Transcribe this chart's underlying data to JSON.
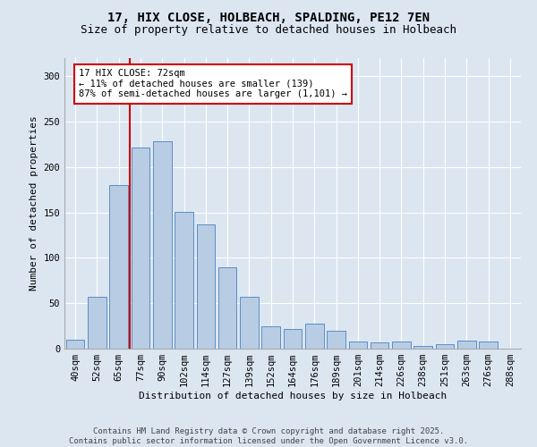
{
  "title_line1": "17, HIX CLOSE, HOLBEACH, SPALDING, PE12 7EN",
  "title_line2": "Size of property relative to detached houses in Holbeach",
  "xlabel": "Distribution of detached houses by size in Holbeach",
  "ylabel": "Number of detached properties",
  "categories": [
    "40sqm",
    "52sqm",
    "65sqm",
    "77sqm",
    "90sqm",
    "102sqm",
    "114sqm",
    "127sqm",
    "139sqm",
    "152sqm",
    "164sqm",
    "176sqm",
    "189sqm",
    "201sqm",
    "214sqm",
    "226sqm",
    "238sqm",
    "251sqm",
    "263sqm",
    "276sqm",
    "288sqm"
  ],
  "values": [
    10,
    57,
    180,
    222,
    228,
    151,
    137,
    90,
    57,
    25,
    22,
    28,
    20,
    8,
    7,
    8,
    3,
    5,
    9,
    8,
    0
  ],
  "bar_color": "#b8cce4",
  "bar_edgecolor": "#5a8ec5",
  "annotation_text": "17 HIX CLOSE: 72sqm\n← 11% of detached houses are smaller (139)\n87% of semi-detached houses are larger (1,101) →",
  "annotation_box_color": "#ffffff",
  "annotation_box_edgecolor": "#cc0000",
  "vline_color": "#cc0000",
  "vline_x": 2.5,
  "ylim": [
    0,
    320
  ],
  "yticks": [
    0,
    50,
    100,
    150,
    200,
    250,
    300
  ],
  "background_color": "#dce6f1",
  "footer_text": "Contains HM Land Registry data © Crown copyright and database right 2025.\nContains public sector information licensed under the Open Government Licence v3.0.",
  "title_fontsize": 10,
  "subtitle_fontsize": 9,
  "label_fontsize": 8,
  "tick_fontsize": 7.5,
  "annotation_fontsize": 7.5,
  "footer_fontsize": 6.5
}
